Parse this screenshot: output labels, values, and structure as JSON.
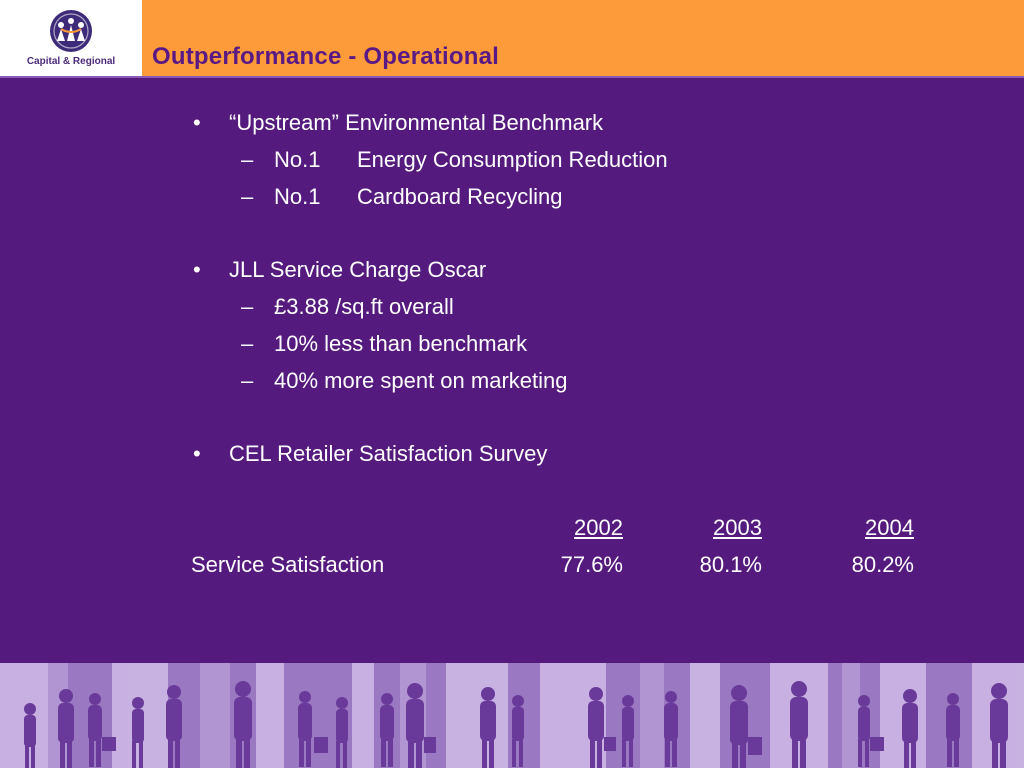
{
  "slide": {
    "title": "Outperformance - Operational",
    "logo_text": "Capital & Regional",
    "colors": {
      "header": "#fd9a3a",
      "background": "#551a7e",
      "title": "#5a1a86",
      "text": "#ffffff",
      "footer": "#9a78c2"
    }
  },
  "bullets": [
    {
      "bullet": "•",
      "text": "“Upstream” Environmental Benchmark",
      "subs": [
        {
          "dash": "–",
          "rank": "No.1",
          "text": "Energy Consumption Reduction"
        },
        {
          "dash": "–",
          "rank": "No.1",
          "text": "Cardboard Recycling"
        }
      ]
    },
    {
      "bullet": "•",
      "text": "JLL Service Charge Oscar",
      "subs": [
        {
          "dash": "–",
          "text": "£3.88 /sq.ft overall"
        },
        {
          "dash": "–",
          "text": "10% less than benchmark"
        },
        {
          "dash": "–",
          "text": "40% more spent on marketing"
        }
      ]
    },
    {
      "bullet": "•",
      "text": "CEL Retailer Satisfaction Survey",
      "subs": []
    }
  ],
  "table": {
    "years": [
      "2002",
      "2003",
      "2004"
    ],
    "rows": [
      {
        "label": "Service Satisfaction",
        "values": [
          "77.6%",
          "80.1%",
          "80.2%"
        ]
      }
    ]
  },
  "footer": {
    "image": "silhouettes of shoppers walking"
  }
}
